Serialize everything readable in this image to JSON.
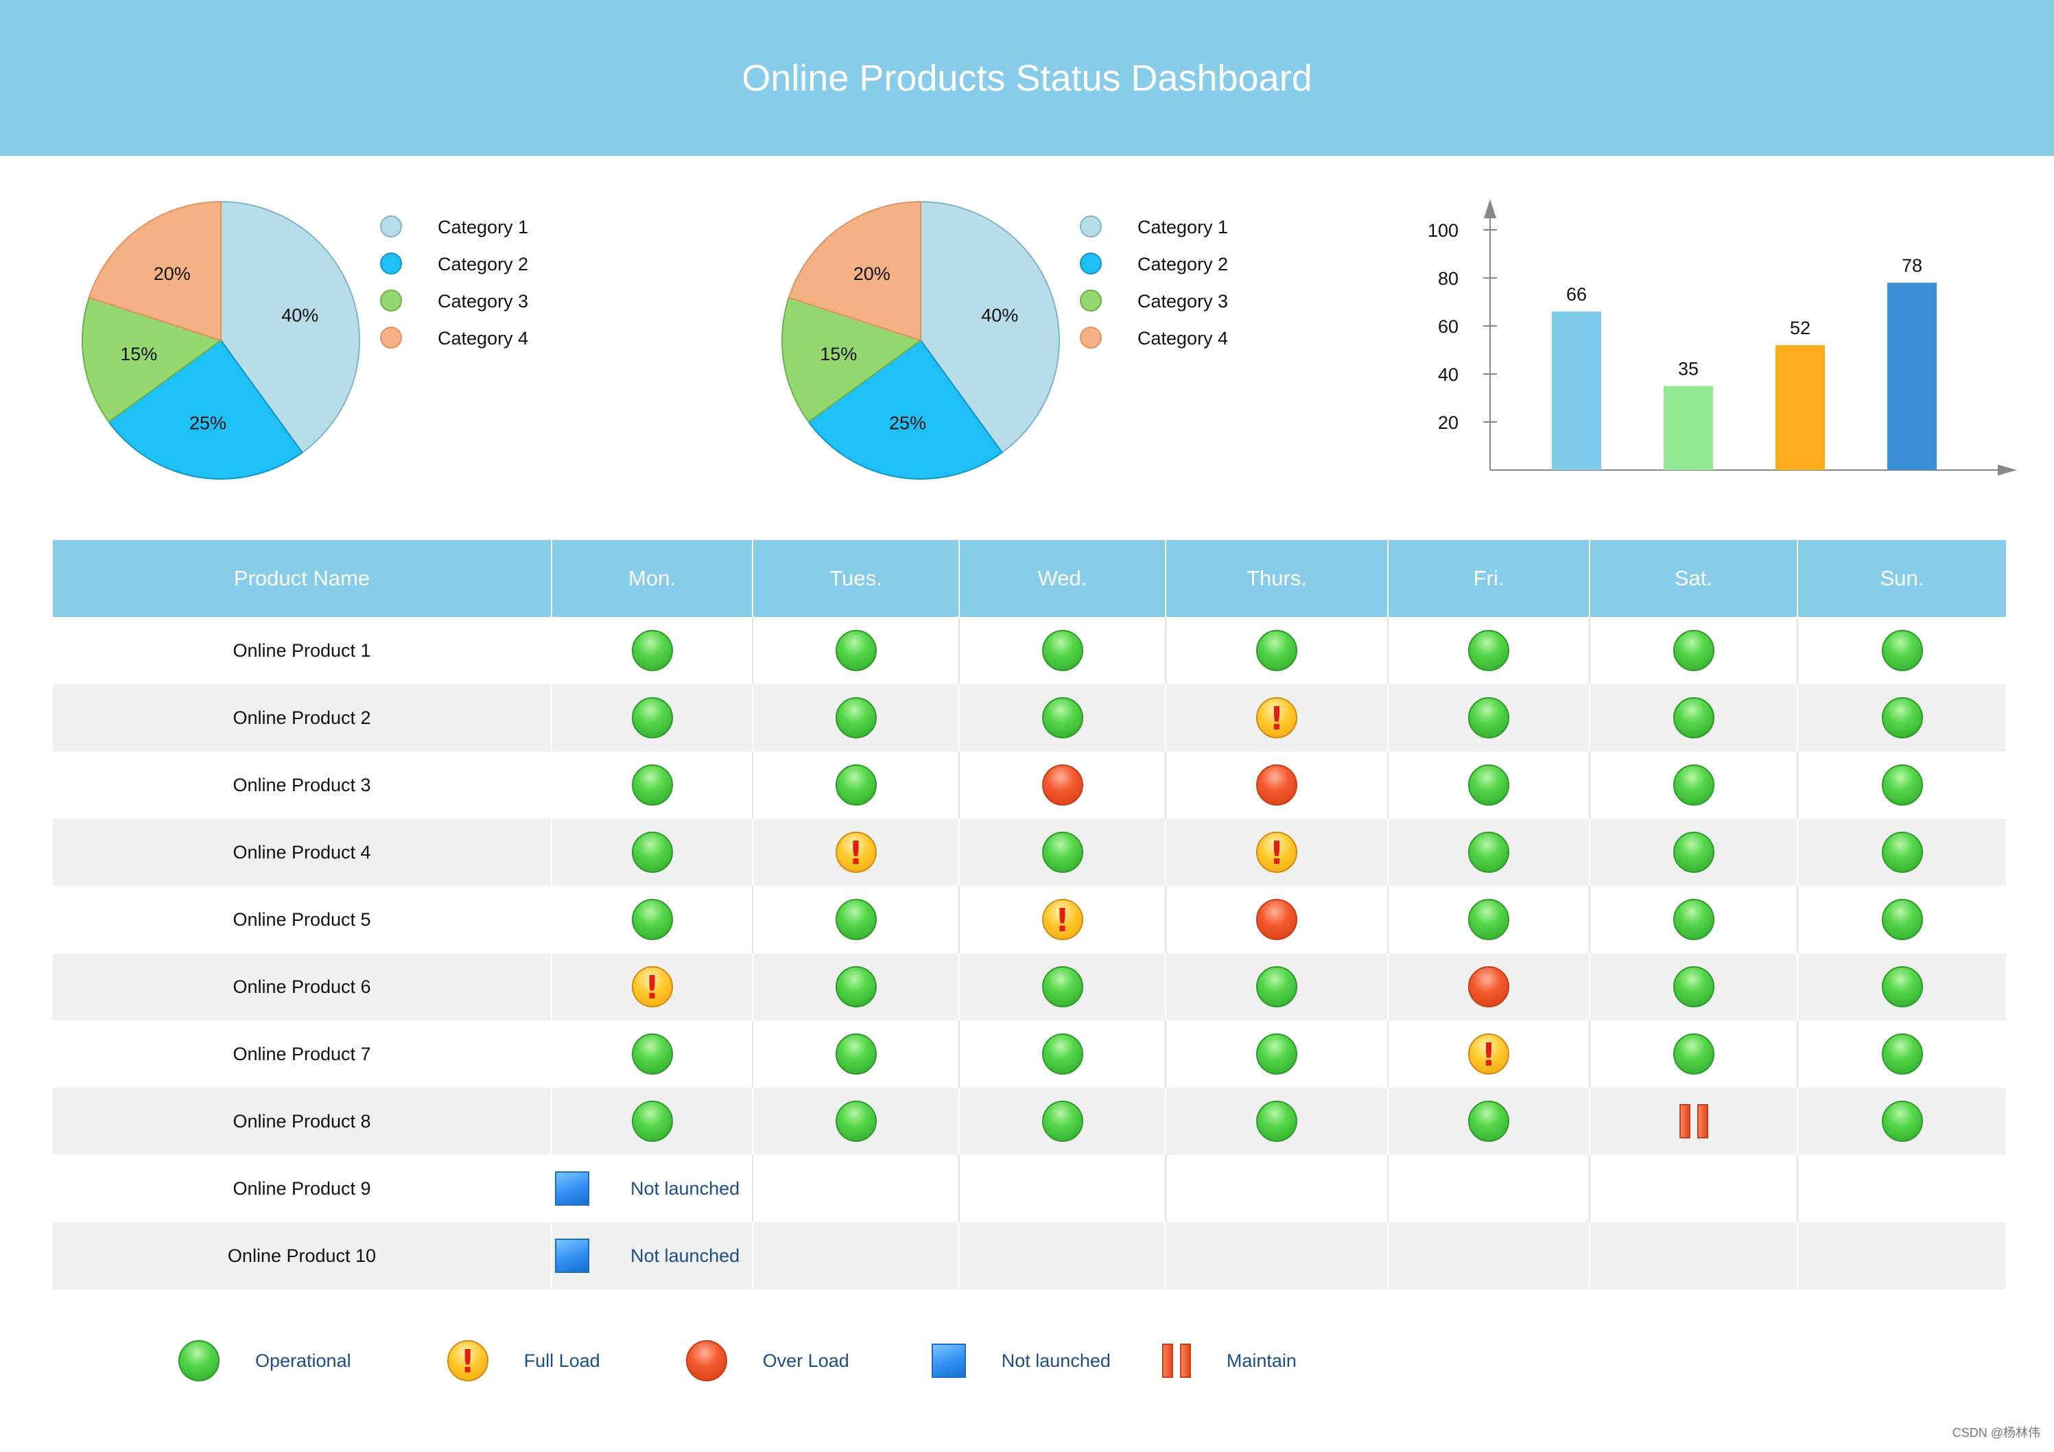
{
  "header": {
    "title": "Online Products Status Dashboard"
  },
  "colors": {
    "header_bg": "#87cdea",
    "category_1": "#b7dde9",
    "category_2": "#1fc0f5",
    "category_3": "#95d86f",
    "category_4": "#f4b184",
    "operational": "#3cc43a",
    "full_load": "#ffc21f",
    "over_load": "#ec4a1f",
    "not_launched": "#2f8ff0",
    "maintain": "#e8562a"
  },
  "chart_data": [
    {
      "type": "pie",
      "categories": [
        "Category 1",
        "Category 2",
        "Category 3",
        "Category 4"
      ],
      "values": [
        40,
        25,
        15,
        20
      ],
      "labels": [
        "40%",
        "25%",
        "15%",
        "20%"
      ],
      "legend_position": "right"
    },
    {
      "type": "pie",
      "categories": [
        "Category 1",
        "Category 2",
        "Category 3",
        "Category 4"
      ],
      "values": [
        40,
        25,
        15,
        20
      ],
      "labels": [
        "40%",
        "25%",
        "15%",
        "20%"
      ],
      "legend_position": "right"
    },
    {
      "type": "bar",
      "values": [
        66,
        35,
        52,
        78
      ],
      "bar_colors": [
        "#7fcbec",
        "#93e892",
        "#ffad1f",
        "#3d8fd6"
      ],
      "y_ticks": [
        20,
        40,
        60,
        80,
        100
      ],
      "ylim": [
        0,
        100
      ],
      "grid": false
    }
  ],
  "table": {
    "headers": [
      "Product Name",
      "Mon.",
      "Tues.",
      "Wed.",
      "Thurs.",
      "Fri.",
      "Sat.",
      "Sun."
    ],
    "rows": [
      {
        "name": "Online Product 1",
        "status": [
          "operational",
          "operational",
          "operational",
          "operational",
          "operational",
          "operational",
          "operational"
        ]
      },
      {
        "name": "Online Product 2",
        "status": [
          "operational",
          "operational",
          "operational",
          "full_load",
          "operational",
          "operational",
          "operational"
        ]
      },
      {
        "name": "Online Product 3",
        "status": [
          "operational",
          "operational",
          "over_load",
          "over_load",
          "operational",
          "operational",
          "operational"
        ]
      },
      {
        "name": "Online Product 4",
        "status": [
          "operational",
          "full_load",
          "operational",
          "full_load",
          "operational",
          "operational",
          "operational"
        ]
      },
      {
        "name": "Online Product 5",
        "status": [
          "operational",
          "operational",
          "full_load",
          "over_load",
          "operational",
          "operational",
          "operational"
        ]
      },
      {
        "name": "Online Product 6",
        "status": [
          "full_load",
          "operational",
          "operational",
          "operational",
          "over_load",
          "operational",
          "operational"
        ]
      },
      {
        "name": "Online Product 7",
        "status": [
          "operational",
          "operational",
          "operational",
          "operational",
          "full_load",
          "operational",
          "operational"
        ]
      },
      {
        "name": "Online Product 8",
        "status": [
          "operational",
          "operational",
          "operational",
          "operational",
          "operational",
          "maintain",
          "operational"
        ]
      },
      {
        "name": "Online Product 9",
        "status": [
          "not_launched"
        ],
        "note": "Not launched"
      },
      {
        "name": "Online Product 10",
        "status": [
          "not_launched"
        ],
        "note": "Not launched"
      }
    ]
  },
  "legend": [
    {
      "status": "operational",
      "label": "Operational"
    },
    {
      "status": "full_load",
      "label": "Full Load"
    },
    {
      "status": "over_load",
      "label": "Over Load"
    },
    {
      "status": "not_launched",
      "label": "Not launched"
    },
    {
      "status": "maintain",
      "label": "Maintain"
    }
  ],
  "watermark": "CSDN @杨林伟"
}
